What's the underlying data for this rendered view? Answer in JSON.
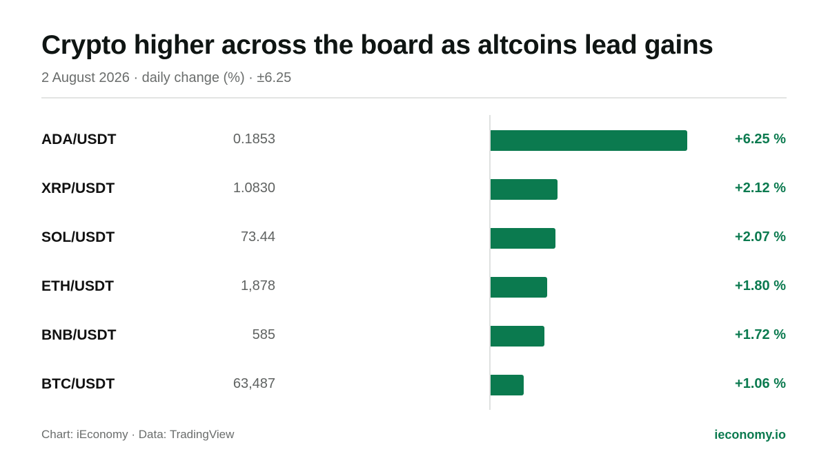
{
  "header": {
    "title": "Crypto higher across the board as altcoins lead gains",
    "subtitle": "2 August 2026 · daily change (%) · ±6.25"
  },
  "footer": {
    "source": "Chart: iEconomy · Data: TradingView",
    "brand": "ieconomy.io"
  },
  "colors": {
    "positive": "#0b7a4f",
    "axis": "#dfe1e0",
    "divider": "#e2e4e3"
  },
  "chart_data": {
    "type": "bar",
    "orientation": "horizontal",
    "title": "Crypto higher across the board as altcoins lead gains",
    "subtitle": "2 August 2026 · daily change (%) · ±6.25",
    "xlim": [
      -6.25,
      6.25
    ],
    "grid": false,
    "categories": [
      "ADA/USDT",
      "XRP/USDT",
      "SOL/USDT",
      "ETH/USDT",
      "BNB/USDT",
      "BTC/USDT"
    ],
    "prices": [
      "0.1853",
      "1.0830",
      "73.44",
      "1,878",
      "585",
      "63,487"
    ],
    "values": [
      6.25,
      2.12,
      2.07,
      1.8,
      1.72,
      1.06
    ],
    "labels": [
      "+6.25 %",
      "+2.12 %",
      "+2.07 %",
      "+1.80 %",
      "+1.72 %",
      "+1.06 %"
    ]
  }
}
